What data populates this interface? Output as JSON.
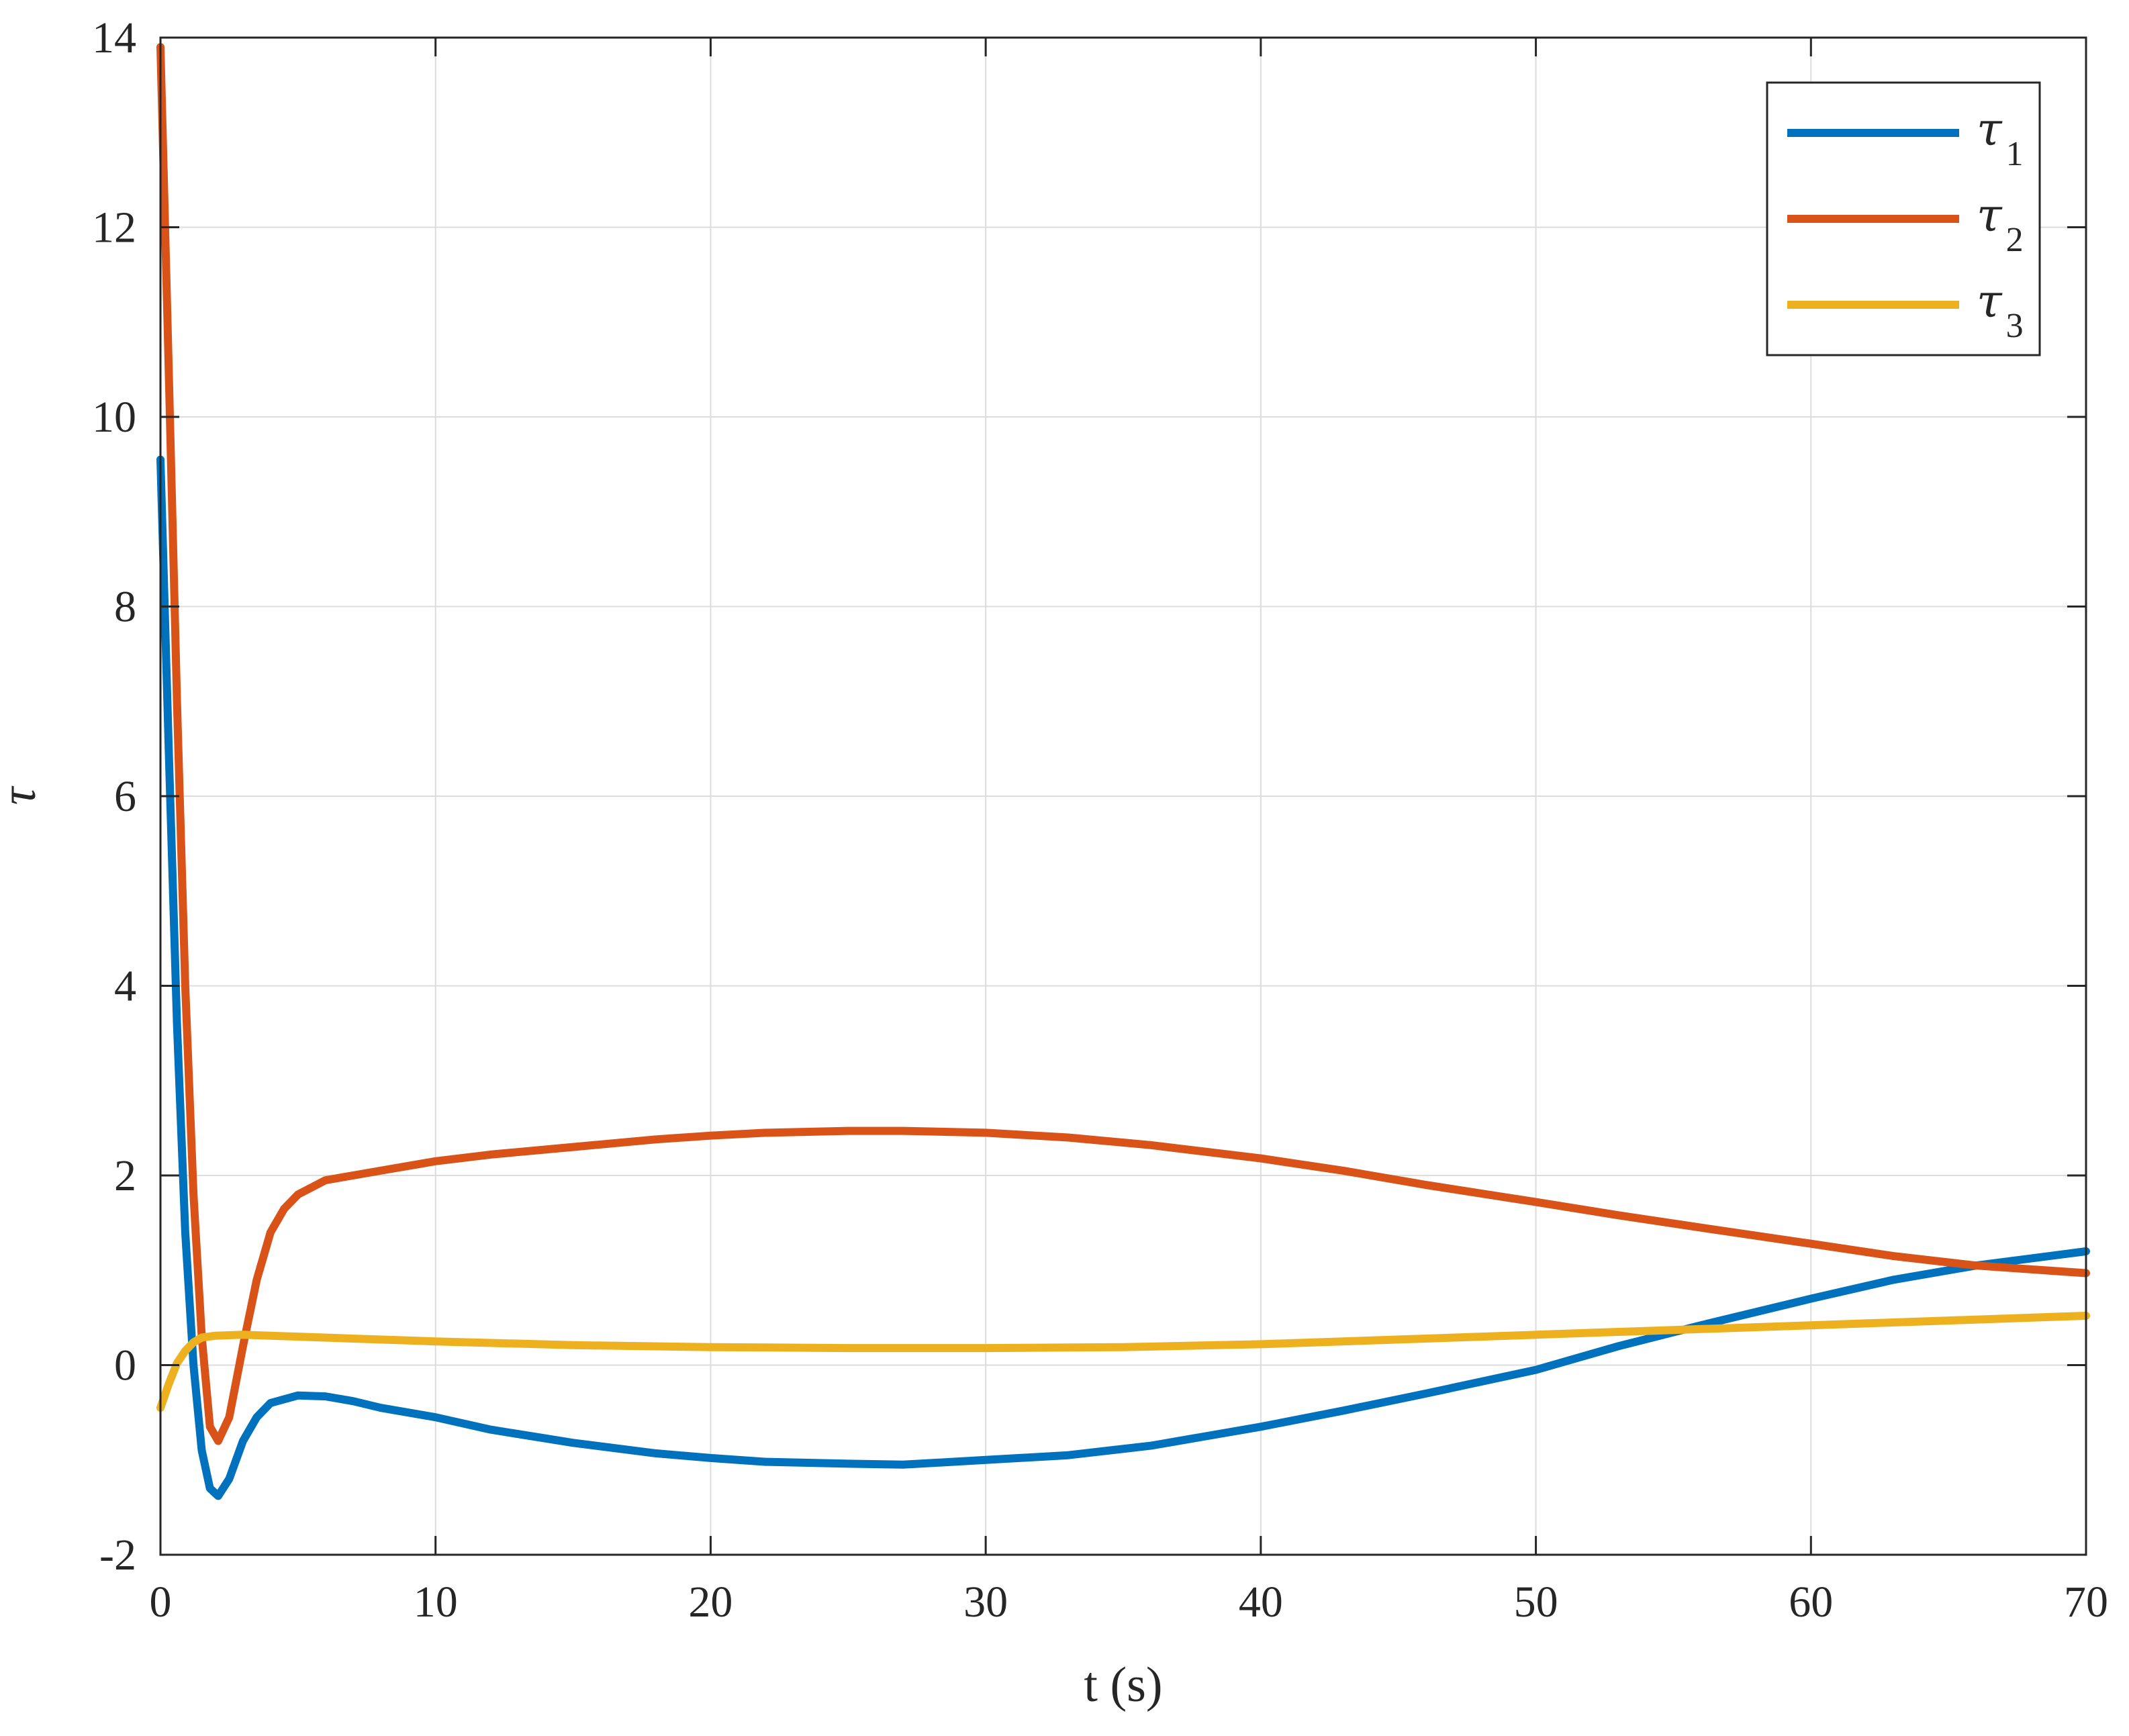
{
  "chart_data": {
    "type": "line",
    "title": "",
    "xlabel": "t (s)",
    "ylabel": "τ",
    "xlim": [
      0,
      70
    ],
    "ylim": [
      -2,
      14
    ],
    "xticks": [
      0,
      10,
      20,
      30,
      40,
      50,
      60,
      70
    ],
    "yticks": [
      -2,
      0,
      2,
      4,
      6,
      8,
      10,
      12,
      14
    ],
    "grid": true,
    "legend_position": "top-right",
    "series": [
      {
        "name": "τ",
        "subscript": "1",
        "color": "#0072BD",
        "x": [
          0,
          0.3,
          0.6,
          0.9,
          1.2,
          1.5,
          1.8,
          2.1,
          2.5,
          3,
          3.5,
          4,
          5,
          6,
          7,
          8,
          10,
          12,
          15,
          18,
          20,
          22,
          25,
          27,
          30,
          33,
          36,
          40,
          43,
          46,
          50,
          53,
          56,
          60,
          63,
          66,
          70
        ],
        "y": [
          9.55,
          6.5,
          3.6,
          1.4,
          0.0,
          -0.9,
          -1.3,
          -1.38,
          -1.2,
          -0.8,
          -0.55,
          -0.4,
          -0.32,
          -0.33,
          -0.38,
          -0.45,
          -0.55,
          -0.68,
          -0.82,
          -0.93,
          -0.98,
          -1.02,
          -1.04,
          -1.05,
          -1.0,
          -0.95,
          -0.85,
          -0.65,
          -0.48,
          -0.3,
          -0.05,
          0.2,
          0.42,
          0.7,
          0.9,
          1.05,
          1.2
        ]
      },
      {
        "name": "τ",
        "subscript": "2",
        "color": "#D95319",
        "x": [
          0,
          0.3,
          0.6,
          0.9,
          1.2,
          1.5,
          1.8,
          2.1,
          2.5,
          3,
          3.5,
          4,
          4.5,
          5,
          6,
          7,
          8,
          10,
          12,
          15,
          18,
          20,
          22,
          25,
          27,
          30,
          33,
          36,
          40,
          43,
          46,
          50,
          53,
          56,
          60,
          63,
          66,
          70
        ],
        "y": [
          13.9,
          10.5,
          7.0,
          4.0,
          1.8,
          0.3,
          -0.65,
          -0.8,
          -0.55,
          0.2,
          0.9,
          1.4,
          1.65,
          1.8,
          1.95,
          2.0,
          2.05,
          2.15,
          2.22,
          2.3,
          2.38,
          2.42,
          2.45,
          2.47,
          2.47,
          2.45,
          2.4,
          2.32,
          2.18,
          2.05,
          1.9,
          1.72,
          1.58,
          1.45,
          1.28,
          1.15,
          1.05,
          0.97
        ]
      },
      {
        "name": "τ",
        "subscript": "3",
        "color": "#EDB120",
        "x": [
          0,
          0.3,
          0.6,
          0.9,
          1.2,
          1.5,
          2,
          3,
          4,
          5,
          7,
          10,
          15,
          20,
          25,
          30,
          35,
          40,
          45,
          50,
          55,
          60,
          65,
          70
        ],
        "y": [
          -0.45,
          -0.2,
          0.02,
          0.15,
          0.24,
          0.29,
          0.31,
          0.32,
          0.31,
          0.3,
          0.28,
          0.25,
          0.21,
          0.19,
          0.18,
          0.18,
          0.19,
          0.22,
          0.27,
          0.32,
          0.37,
          0.42,
          0.47,
          0.52
        ]
      }
    ]
  }
}
